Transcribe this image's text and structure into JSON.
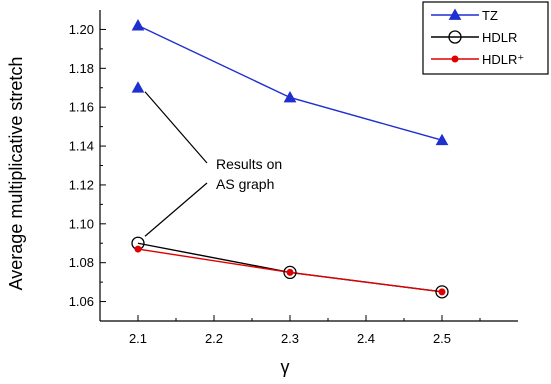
{
  "chart_data": {
    "type": "line",
    "xlabel": "γ",
    "ylabel": "Average multiplicative stretch",
    "x": [
      2.1,
      2.3,
      2.5
    ],
    "xlim": [
      2.05,
      2.6
    ],
    "ylim": [
      1.05,
      1.21
    ],
    "x_ticks": [
      "2.1",
      "2.2",
      "2.3",
      "2.4",
      "2.5"
    ],
    "y_ticks": [
      "1.06",
      "1.08",
      "1.10",
      "1.12",
      "1.14",
      "1.16",
      "1.18",
      "1.20"
    ],
    "series": [
      {
        "name": "TZ",
        "color": "#1f2fd0",
        "marker": "filled-triangle",
        "values": [
          1.202,
          1.165,
          1.143
        ]
      },
      {
        "name": "HDLR",
        "color": "#000000",
        "marker": "open-circle",
        "values": [
          1.09,
          1.075,
          1.065
        ]
      },
      {
        "name": "HDLR⁺",
        "color": "#e00000",
        "marker": "filled-dot",
        "values": [
          1.087,
          1.075,
          1.065
        ]
      }
    ],
    "extra_points": [
      {
        "series": "TZ",
        "x": 2.1,
        "y": 1.17
      }
    ],
    "annotation": {
      "lines": [
        "Results on",
        "AS graph"
      ],
      "targets": [
        {
          "x": 2.1,
          "y": 1.17
        },
        {
          "x": 2.1,
          "y": 1.09
        }
      ]
    },
    "legend_position": "top-right",
    "grid": false
  }
}
